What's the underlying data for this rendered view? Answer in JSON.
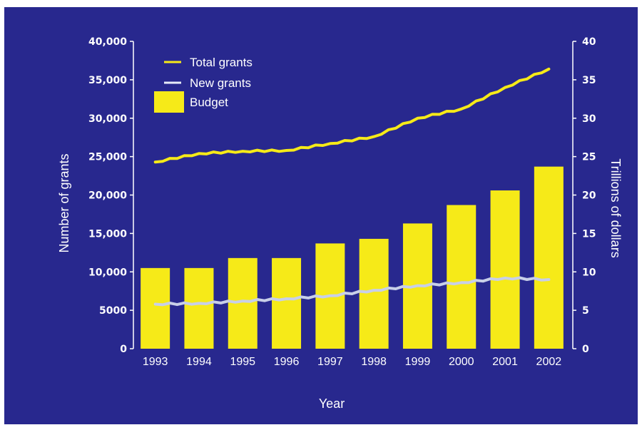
{
  "colors": {
    "background": "#28288e",
    "budget_bar": "#f6ea18",
    "total_grants_line": "#f6ea18",
    "new_grants_line": "#c8cfe8",
    "text": "#ffffff"
  },
  "chart_data": {
    "type": "bar",
    "title": "",
    "xlabel": "Year",
    "ylabel_left": "Number of grants",
    "ylabel_right": "Trillions of dollars",
    "categories": [
      "1993",
      "1994",
      "1995",
      "1996",
      "1997",
      "1998",
      "1999",
      "2000",
      "2001",
      "2002"
    ],
    "y_left": {
      "ylim": [
        0,
        40000
      ],
      "ticks": [
        "0",
        "5000",
        "10,000",
        "15,000",
        "20,000",
        "25,000",
        "30,000",
        "35,000",
        "40,000"
      ]
    },
    "y_right": {
      "ylim": [
        0,
        40
      ],
      "ticks": [
        "0",
        "5",
        "10",
        "15",
        "20",
        "25",
        "30",
        "35",
        "40"
      ]
    },
    "series": [
      {
        "name": "Budget",
        "type": "bar",
        "axis": "right",
        "values": [
          10.5,
          10.5,
          11.8,
          11.8,
          13.7,
          14.3,
          16.3,
          18.7,
          20.6,
          23.7
        ]
      },
      {
        "name": "Total grants",
        "type": "line",
        "axis": "left",
        "values": [
          24300,
          25400,
          25700,
          25800,
          26700,
          27600,
          30000,
          31200,
          34000,
          36400
        ]
      },
      {
        "name": "New grants",
        "type": "line",
        "axis": "left",
        "values": [
          5800,
          5900,
          6200,
          6500,
          6900,
          7600,
          8200,
          8600,
          9200,
          9000
        ]
      }
    ],
    "legend": {
      "position": "top-left",
      "entries": [
        "Total grants",
        "New grants",
        "Budget"
      ]
    },
    "grid": false
  }
}
